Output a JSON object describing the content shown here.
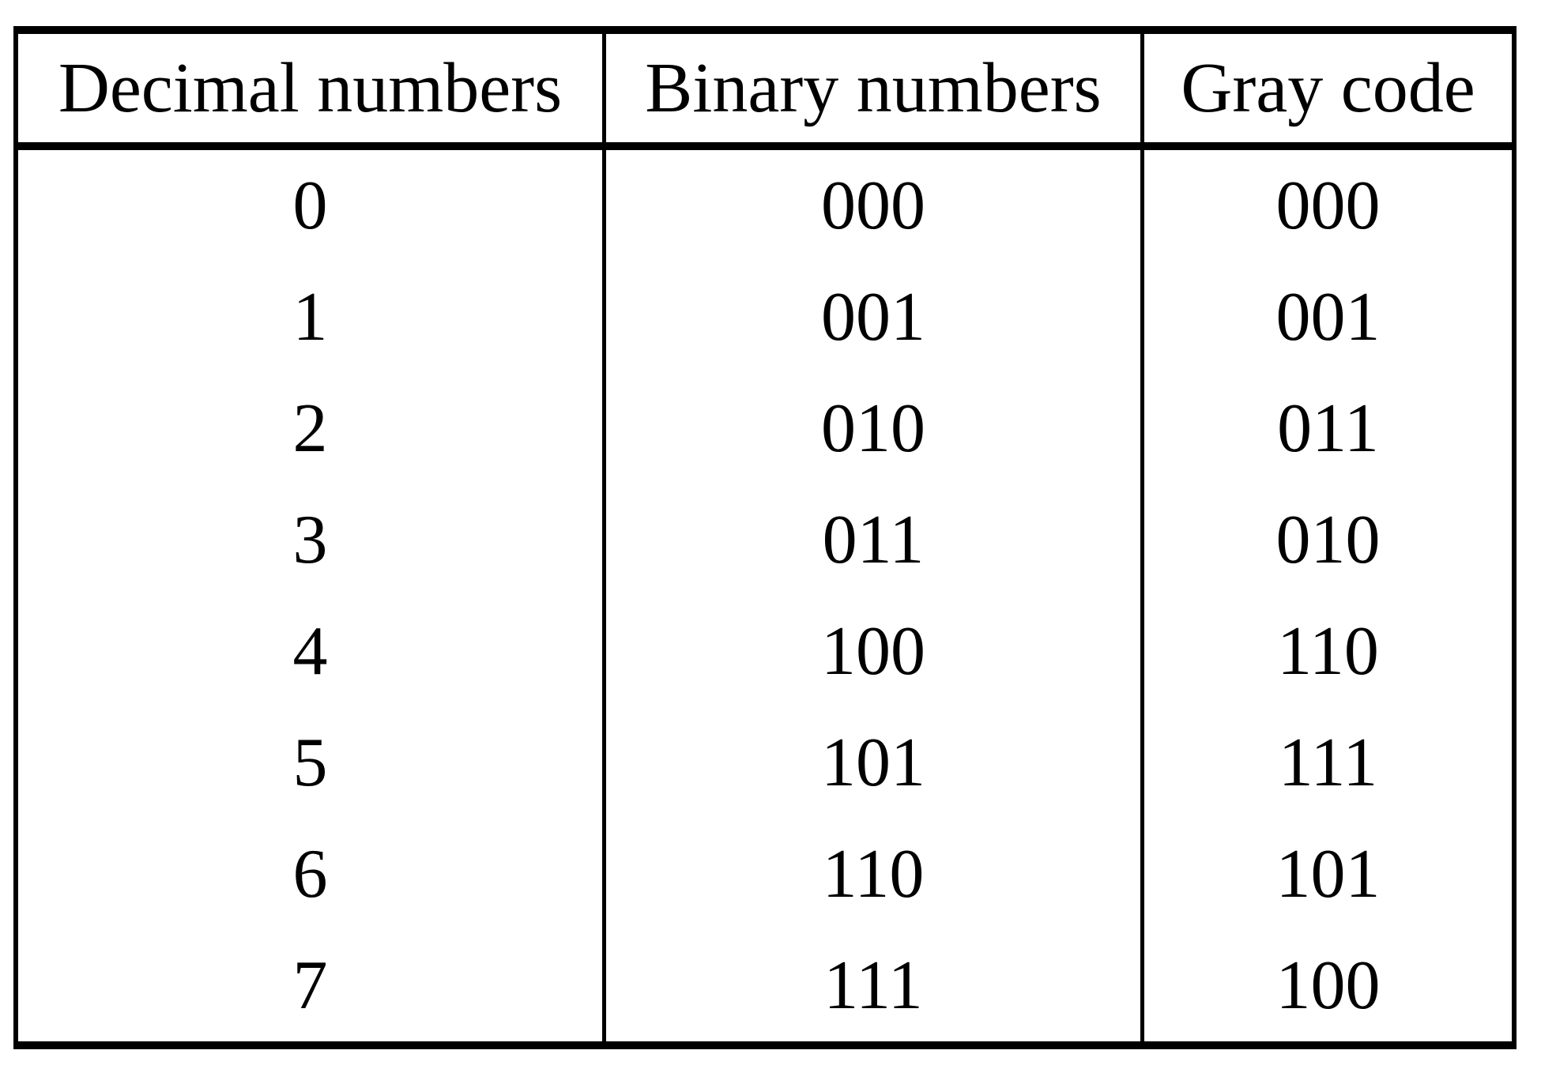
{
  "table": {
    "headers": [
      "Decimal numbers",
      "Binary numbers",
      "Gray code"
    ],
    "rows": [
      {
        "decimal": "0",
        "binary": "000",
        "gray": "000"
      },
      {
        "decimal": "1",
        "binary": "001",
        "gray": "001"
      },
      {
        "decimal": "2",
        "binary": "010",
        "gray": "011"
      },
      {
        "decimal": "3",
        "binary": "011",
        "gray": "010"
      },
      {
        "decimal": "4",
        "binary": "100",
        "gray": "110"
      },
      {
        "decimal": "5",
        "binary": "101",
        "gray": "111"
      },
      {
        "decimal": "6",
        "binary": "110",
        "gray": "101"
      },
      {
        "decimal": "7",
        "binary": "111",
        "gray": "100"
      }
    ],
    "colors": {
      "border": "#000000",
      "text": "#000000",
      "background": "#ffffff"
    }
  },
  "chart_data": {
    "type": "table",
    "title": "",
    "columns": [
      "Decimal numbers",
      "Binary numbers",
      "Gray code"
    ],
    "rows": [
      [
        "0",
        "000",
        "000"
      ],
      [
        "1",
        "001",
        "001"
      ],
      [
        "2",
        "010",
        "011"
      ],
      [
        "3",
        "011",
        "010"
      ],
      [
        "4",
        "100",
        "110"
      ],
      [
        "5",
        "101",
        "111"
      ],
      [
        "6",
        "110",
        "101"
      ],
      [
        "7",
        "111",
        "100"
      ]
    ]
  }
}
